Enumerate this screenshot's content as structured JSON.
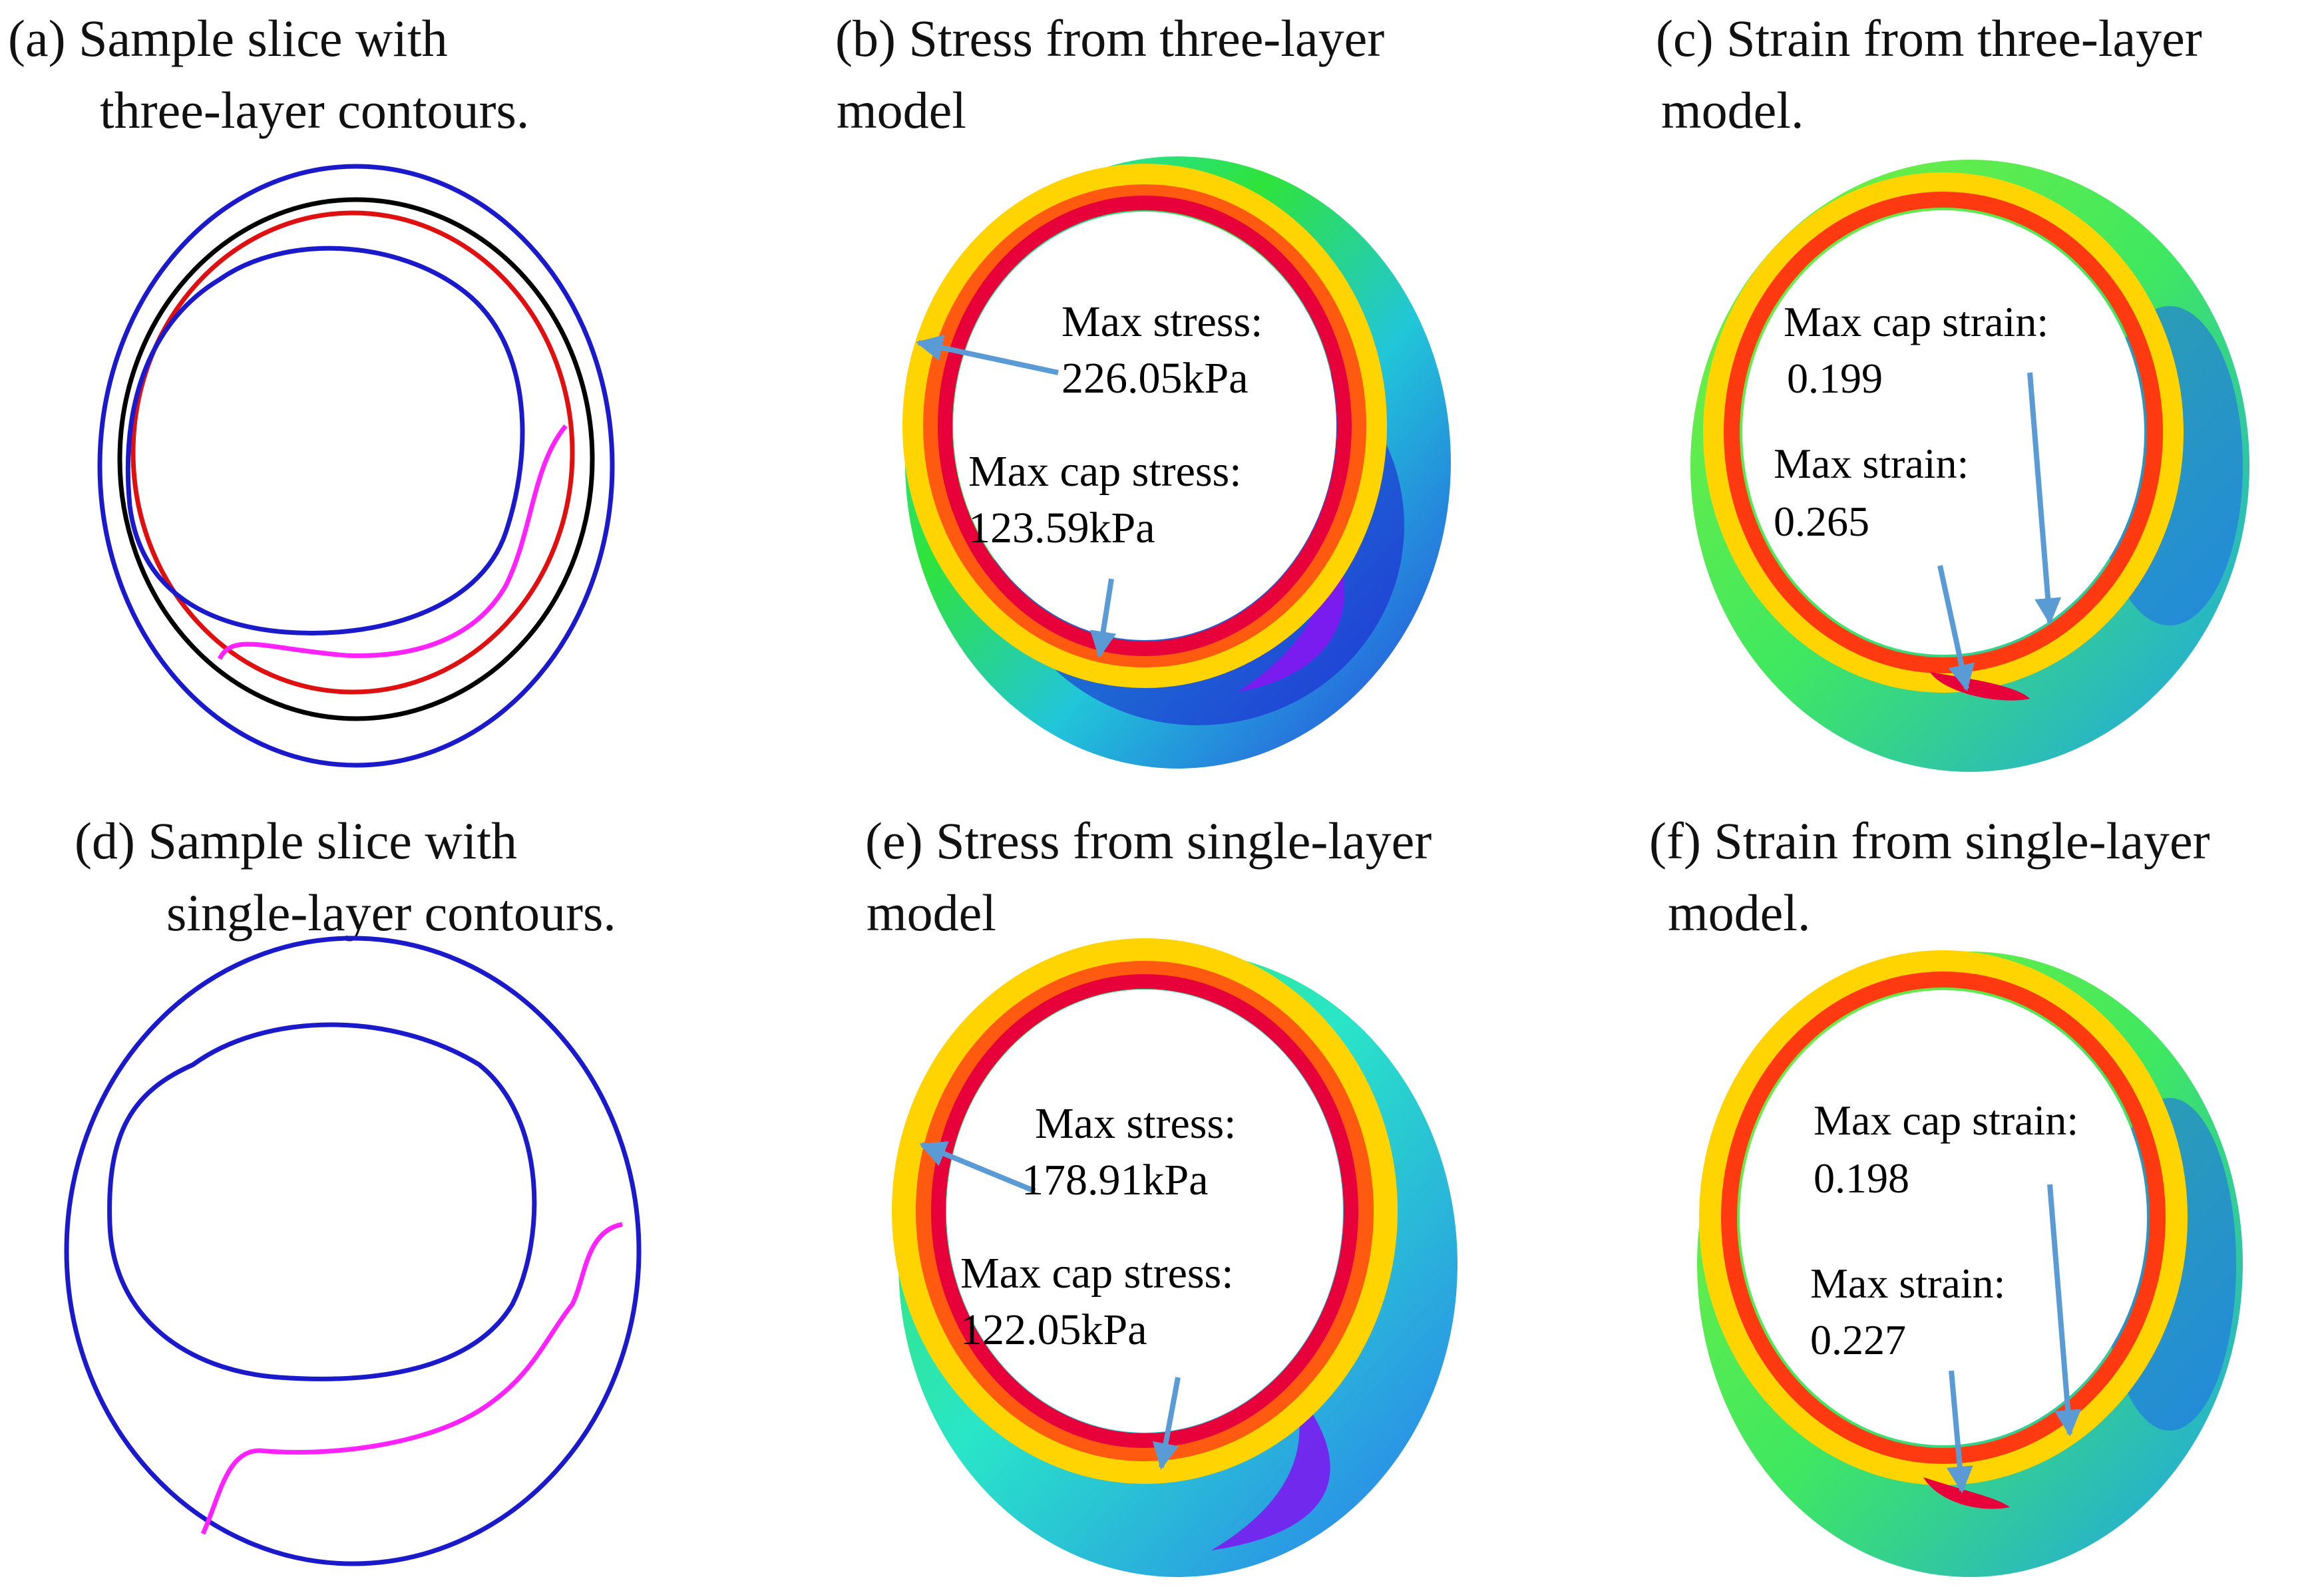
{
  "panels": {
    "a": {
      "line1": "(a) Sample slice with",
      "line2": "three-layer contours."
    },
    "b": {
      "line1": "(b) Stress from three-layer",
      "line2": "model",
      "max_label": "Max stress:",
      "max_value": "226.05kPa",
      "cap_label": "Max cap stress:",
      "cap_value": "123.59kPa"
    },
    "c": {
      "line1": "(c) Strain from three-layer",
      "line2": "model.",
      "cap_label": "Max cap strain:",
      "cap_value": "0.199",
      "max_label": "Max strain:",
      "max_value": "0.265"
    },
    "d": {
      "line1": "(d) Sample slice with",
      "line2": "single-layer contours."
    },
    "e": {
      "line1": "(e) Stress from single-layer",
      "line2": "model",
      "max_label": "Max stress:",
      "max_value": "178.91kPa",
      "cap_label": "Max cap stress:",
      "cap_value": "122.05kPa"
    },
    "f": {
      "line1": "(f) Strain from single-layer",
      "line2": "model.",
      "cap_label": "Max cap strain:",
      "cap_value": "0.198",
      "max_label": "Max strain:",
      "max_value": "0.227"
    }
  },
  "colors": {
    "outer_contour": "#1a1acc",
    "lumen_contour": "#1a1acc",
    "black_layer": "#000000",
    "red_layer": "#e01010",
    "cap_contour": "#ff22ff",
    "arrow": "#5b9bd5"
  }
}
